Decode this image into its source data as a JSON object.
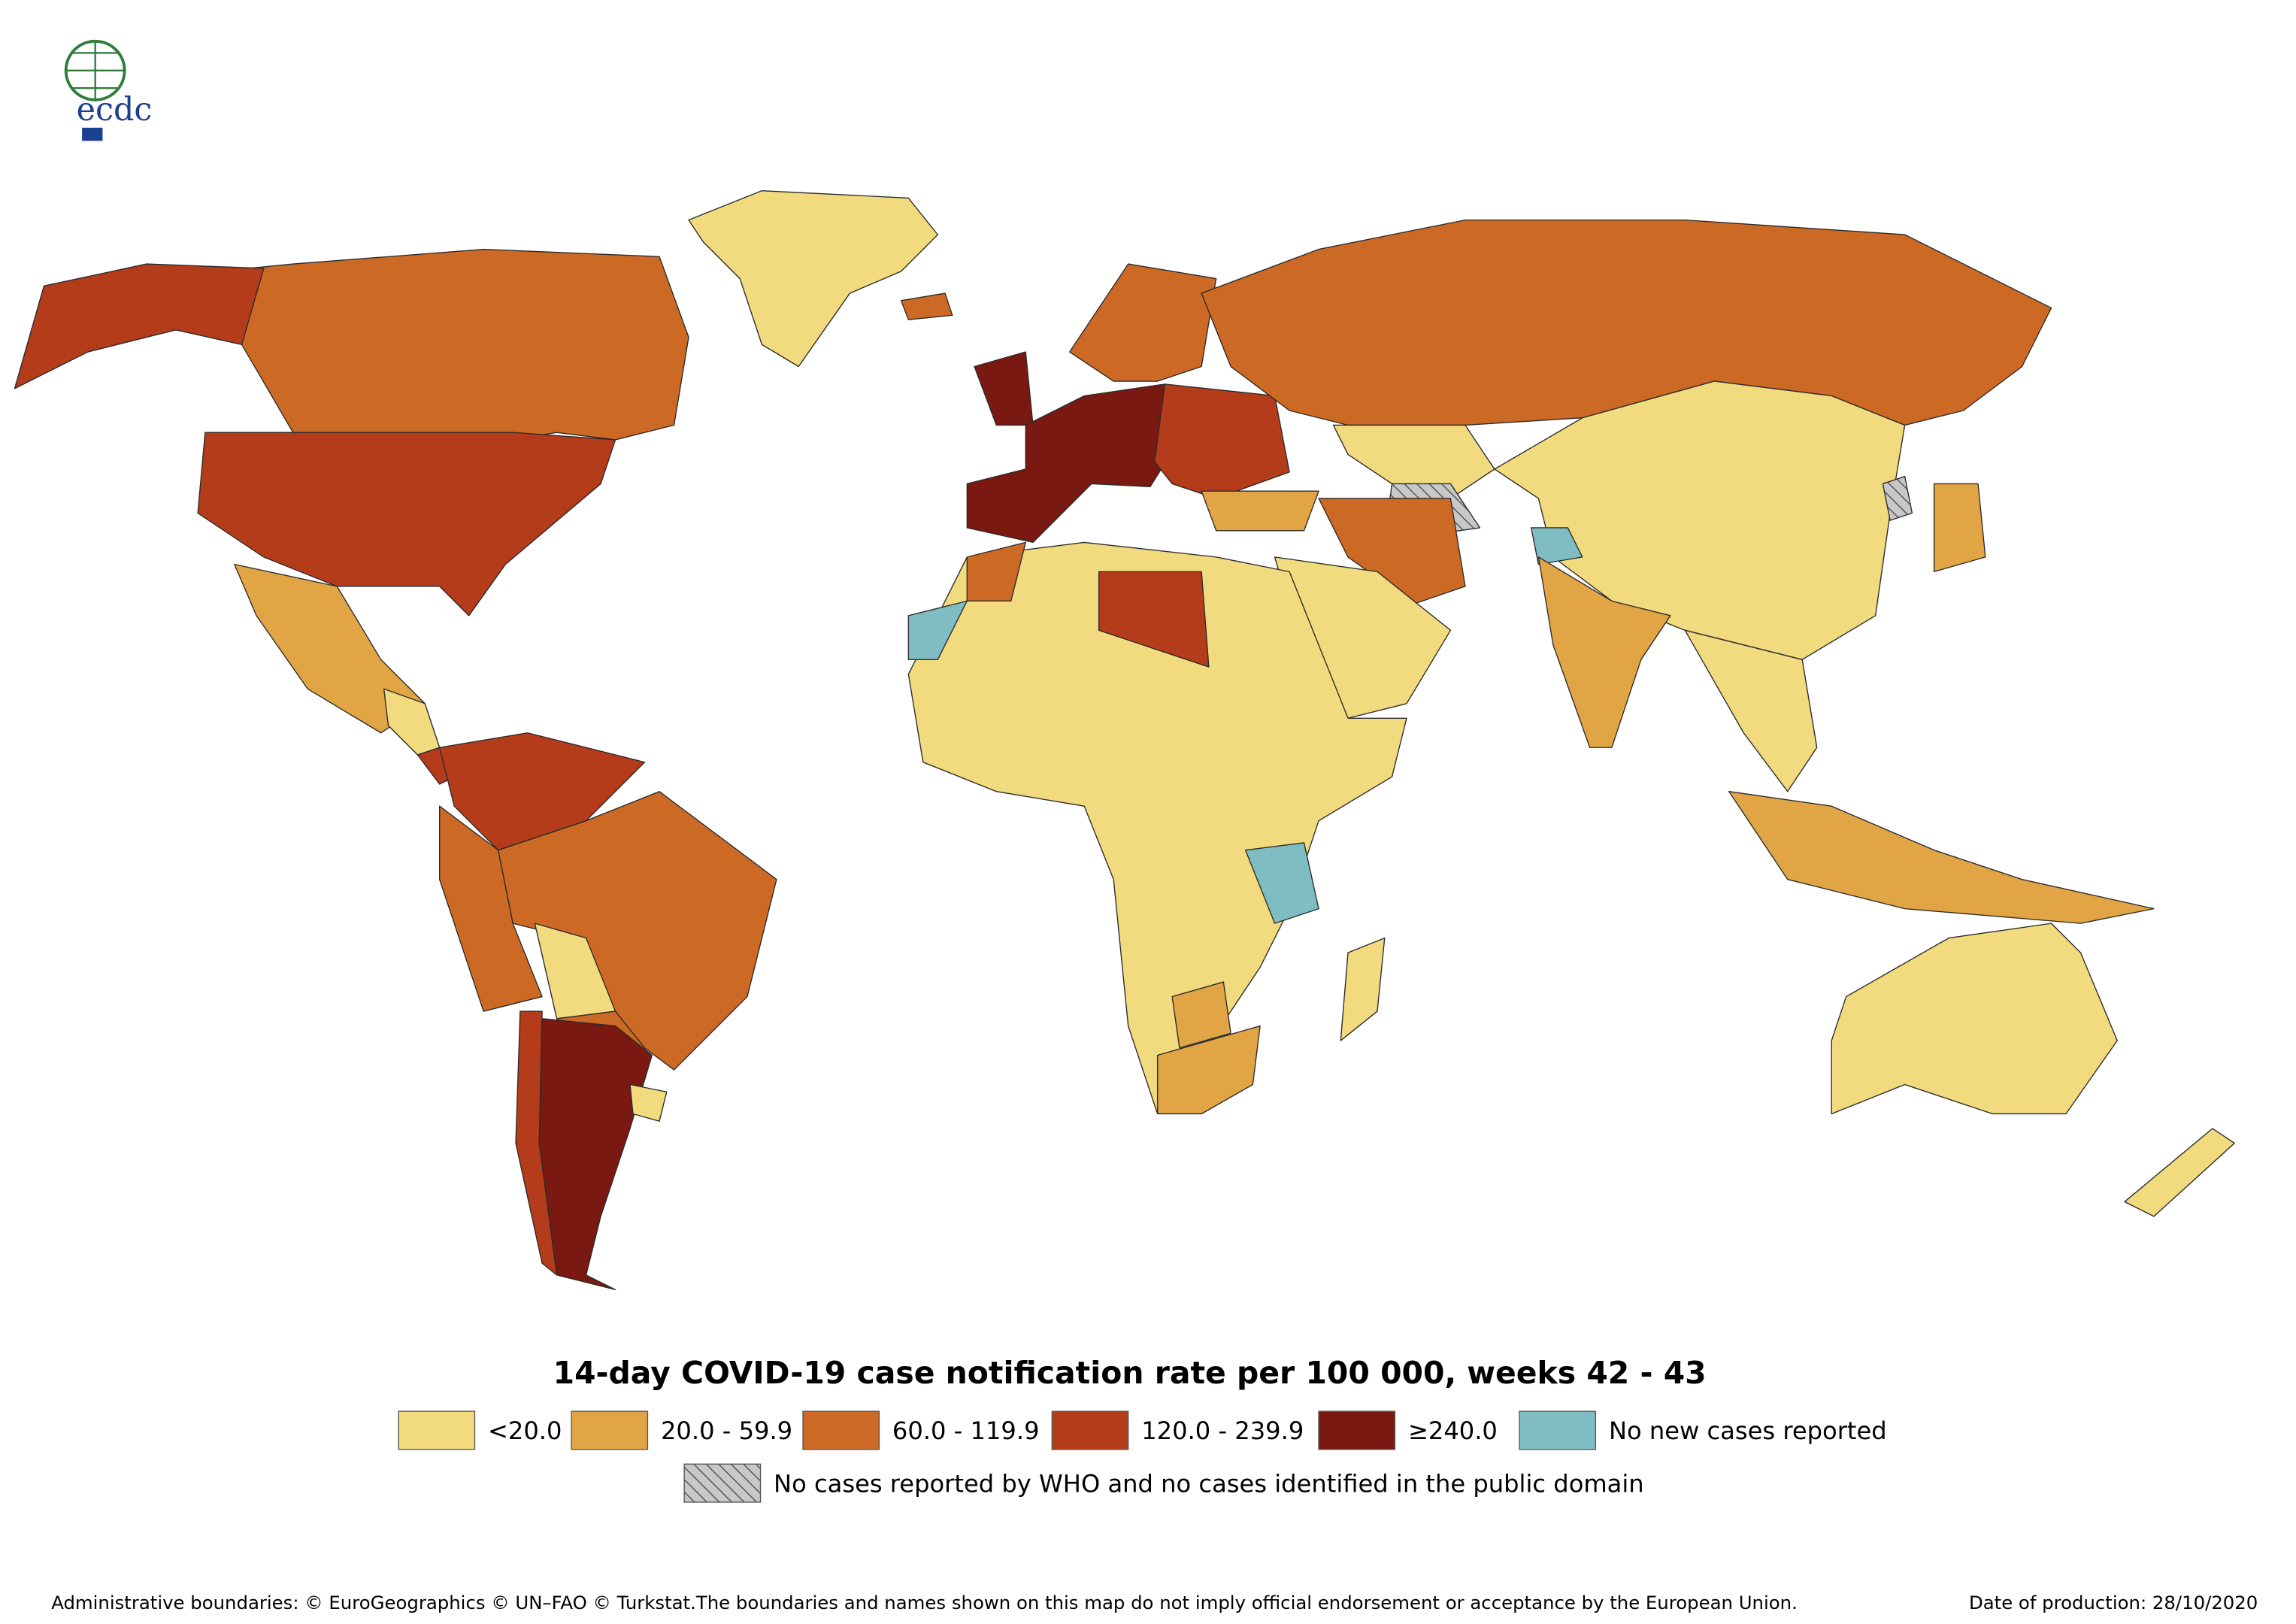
{
  "logo": {
    "text": "ecdc"
  },
  "title": "14-day COVID-19 case notification rate per 100 000, weeks 42 - 43",
  "legend": {
    "items": [
      {
        "label": "<20.0",
        "color": "#f2da7e"
      },
      {
        "label": "20.0 - 59.9",
        "color": "#e2a545"
      },
      {
        "label": "60.0 - 119.9",
        "color": "#cc6a25"
      },
      {
        "label": "120.0 - 239.9",
        "color": "#b43c1b"
      },
      {
        "label": "≥240.0",
        "color": "#7a1912"
      },
      {
        "label": "No new cases reported",
        "color": "#7fbdc3"
      }
    ],
    "hatched": {
      "label": "No cases reported by WHO and no cases identified in the public domain"
    }
  },
  "footer": {
    "credits": "Administrative boundaries: © EuroGeographics © UN–FAO © Turkstat.The boundaries and names shown on this map do not imply official endorsement or acceptance by the European Union.",
    "date": "Date of production: 28/10/2020"
  }
}
